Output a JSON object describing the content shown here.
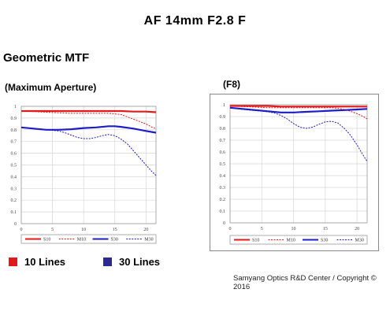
{
  "title": "AF 14mm F2.8 F",
  "section_title": "Geometric MTF",
  "footer": "Samyang Optics R&D Center / Copyright © 2016",
  "lines_legend": [
    {
      "label": "10 Lines",
      "color": "#e31919"
    },
    {
      "label": "30  Lines",
      "color": "#2b2b8f"
    }
  ],
  "chart_data": [
    {
      "type": "line",
      "title": "(Maximum Aperture)",
      "xlim": [
        0,
        21.6
      ],
      "ylim": [
        0,
        1
      ],
      "xticks": [
        0,
        5,
        10,
        15,
        20
      ],
      "yticks": [
        0,
        0.1,
        0.2,
        0.3,
        0.4,
        0.5,
        0.6,
        0.7,
        0.8,
        0.9,
        1
      ],
      "grid": true,
      "legend": "bottom",
      "series": [
        {
          "name": "S10",
          "color": "#e31919",
          "style": "solid",
          "x": [
            0,
            2,
            4,
            6,
            8,
            10,
            12,
            14,
            16,
            18,
            20,
            21.6
          ],
          "y": [
            0.96,
            0.96,
            0.96,
            0.96,
            0.96,
            0.96,
            0.96,
            0.96,
            0.96,
            0.955,
            0.955,
            0.95
          ]
        },
        {
          "name": "M10",
          "color": "#e31919",
          "style": "dashed",
          "x": [
            0,
            2,
            4,
            6,
            8,
            10,
            12,
            14,
            16,
            17,
            18,
            19,
            20,
            21,
            21.6
          ],
          "y": [
            0.96,
            0.955,
            0.95,
            0.945,
            0.94,
            0.94,
            0.94,
            0.94,
            0.93,
            0.91,
            0.89,
            0.87,
            0.85,
            0.82,
            0.81
          ]
        },
        {
          "name": "S30",
          "color": "#1d1dc8",
          "style": "solid",
          "x": [
            0,
            2,
            4,
            6,
            8,
            10,
            12,
            14,
            15,
            16,
            18,
            20,
            21.6
          ],
          "y": [
            0.82,
            0.81,
            0.8,
            0.8,
            0.805,
            0.815,
            0.82,
            0.83,
            0.83,
            0.825,
            0.81,
            0.79,
            0.775
          ]
        },
        {
          "name": "M30",
          "color": "#1d1dc8",
          "style": "dashed",
          "x": [
            0,
            2,
            4,
            6,
            7,
            8,
            9,
            10,
            11,
            12,
            13,
            14,
            15,
            16,
            17,
            18,
            19,
            20,
            21,
            21.6
          ],
          "y": [
            0.82,
            0.81,
            0.8,
            0.79,
            0.775,
            0.755,
            0.735,
            0.725,
            0.725,
            0.735,
            0.75,
            0.76,
            0.75,
            0.72,
            0.68,
            0.62,
            0.56,
            0.5,
            0.44,
            0.41
          ]
        }
      ]
    },
    {
      "type": "line",
      "title": "(F8)",
      "xlim": [
        0,
        21.6
      ],
      "ylim": [
        0,
        1
      ],
      "xticks": [
        0,
        5,
        10,
        15,
        20
      ],
      "yticks": [
        0,
        0.1,
        0.2,
        0.3,
        0.4,
        0.5,
        0.6,
        0.7,
        0.8,
        0.9,
        1
      ],
      "grid": true,
      "legend": "bottom",
      "series": [
        {
          "name": "S10",
          "color": "#e31919",
          "style": "solid",
          "x": [
            0,
            2,
            4,
            6,
            8,
            10,
            12,
            14,
            16,
            18,
            20,
            21.6
          ],
          "y": [
            0.99,
            0.99,
            0.99,
            0.99,
            0.985,
            0.985,
            0.985,
            0.985,
            0.985,
            0.985,
            0.985,
            0.985
          ]
        },
        {
          "name": "M10",
          "color": "#e31919",
          "style": "dashed",
          "x": [
            0,
            2,
            4,
            6,
            8,
            10,
            12,
            14,
            16,
            17,
            18,
            19,
            20,
            21,
            21.6
          ],
          "y": [
            0.99,
            0.985,
            0.98,
            0.975,
            0.975,
            0.975,
            0.975,
            0.975,
            0.975,
            0.97,
            0.96,
            0.945,
            0.925,
            0.9,
            0.88
          ]
        },
        {
          "name": "S30",
          "color": "#1d1dc8",
          "style": "solid",
          "x": [
            0,
            2,
            4,
            6,
            8,
            10,
            12,
            14,
            16,
            18,
            20,
            21.6
          ],
          "y": [
            0.975,
            0.965,
            0.955,
            0.945,
            0.935,
            0.935,
            0.94,
            0.945,
            0.95,
            0.955,
            0.96,
            0.965
          ]
        },
        {
          "name": "M30",
          "color": "#1d1dc8",
          "style": "dashed",
          "x": [
            0,
            2,
            4,
            6,
            7,
            8,
            9,
            10,
            11,
            12,
            13,
            14,
            15,
            16,
            17,
            18,
            19,
            20,
            21,
            21.6
          ],
          "y": [
            0.975,
            0.96,
            0.95,
            0.94,
            0.93,
            0.91,
            0.88,
            0.84,
            0.81,
            0.8,
            0.81,
            0.835,
            0.855,
            0.86,
            0.845,
            0.8,
            0.74,
            0.66,
            0.57,
            0.52
          ]
        }
      ]
    }
  ]
}
